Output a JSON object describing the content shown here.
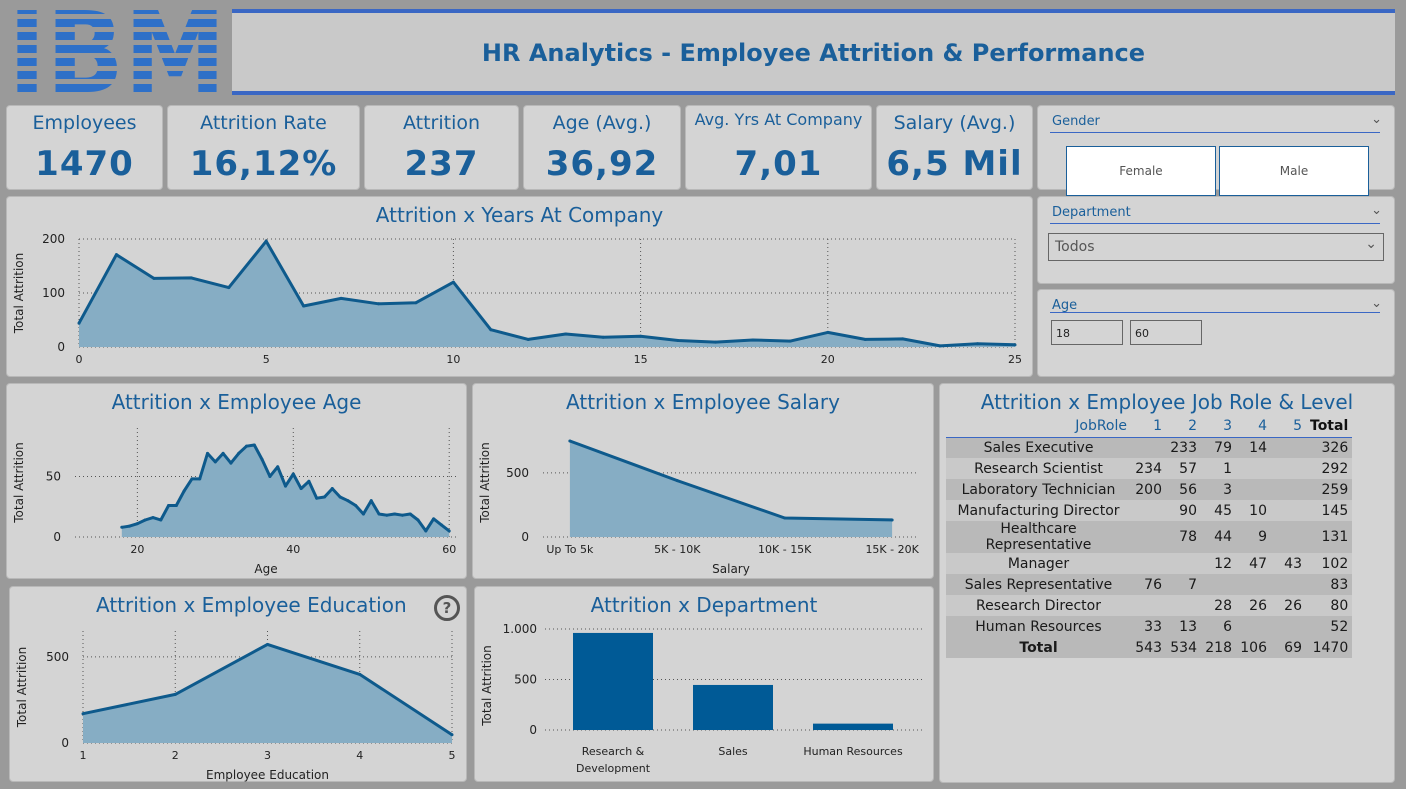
{
  "header": {
    "logo_text": "IBM",
    "title": "HR Analytics - Employee Attrition & Performance"
  },
  "kpis": [
    {
      "label": "Employees",
      "value": "1470"
    },
    {
      "label": "Attrition Rate",
      "value": "16,12%"
    },
    {
      "label": "Attrition",
      "value": "237"
    },
    {
      "label": "Age (Avg.)",
      "value": "36,92"
    },
    {
      "label": "Avg. Yrs At Company",
      "value": "7,01"
    },
    {
      "label": "Salary (Avg.)",
      "value": "6,5 Mil"
    }
  ],
  "slicers": {
    "gender": {
      "title": "Gender",
      "options": [
        "Female",
        "Male"
      ]
    },
    "department": {
      "title": "Department",
      "selected": "Todos"
    },
    "age": {
      "title": "Age",
      "min": "18",
      "max": "60"
    }
  },
  "table": {
    "title": "Attrition x Employee Job Role & Level",
    "headers": [
      "JobRole",
      "1",
      "2",
      "3",
      "4",
      "5",
      "Total"
    ],
    "rows": [
      [
        "Sales Executive",
        "",
        "233",
        "79",
        "14",
        "",
        "326"
      ],
      [
        "Research Scientist",
        "234",
        "57",
        "1",
        "",
        "",
        "292"
      ],
      [
        "Laboratory Technician",
        "200",
        "56",
        "3",
        "",
        "",
        "259"
      ],
      [
        "Manufacturing Director",
        "",
        "90",
        "45",
        "10",
        "",
        "145"
      ],
      [
        "Healthcare Representative",
        "",
        "78",
        "44",
        "9",
        "",
        "131"
      ],
      [
        "Manager",
        "",
        "",
        "12",
        "47",
        "43",
        "102"
      ],
      [
        "Sales Representative",
        "76",
        "7",
        "",
        "",
        "",
        "83"
      ],
      [
        "Research Director",
        "",
        "",
        "28",
        "26",
        "26",
        "80"
      ],
      [
        "Human Resources",
        "33",
        "13",
        "6",
        "",
        "",
        "52"
      ]
    ],
    "total_row": [
      "Total",
      "543",
      "534",
      "218",
      "106",
      "69",
      "1470"
    ]
  },
  "help_icon": "?",
  "chart_data": [
    {
      "type": "area",
      "title": "Attrition x Years At Company",
      "xlabel": "",
      "ylabel": "Total Attrition",
      "xlim": [
        0,
        25
      ],
      "ylim": [
        0,
        200
      ],
      "xticks": [
        0,
        5,
        10,
        15,
        20,
        25
      ],
      "yticks": [
        0,
        100,
        200
      ],
      "x": [
        0,
        1,
        2,
        3,
        4,
        5,
        6,
        7,
        8,
        9,
        10,
        11,
        12,
        13,
        14,
        15,
        16,
        17,
        18,
        19,
        20,
        21,
        22,
        23,
        24,
        25
      ],
      "values": [
        44,
        171,
        127,
        128,
        110,
        196,
        76,
        90,
        80,
        82,
        120,
        32,
        14,
        24,
        18,
        20,
        12,
        9,
        13,
        11,
        27,
        14,
        15,
        2,
        6,
        4
      ]
    },
    {
      "type": "area",
      "title": "Attrition x Employee Age",
      "xlabel": "Age",
      "ylabel": "Total Attrition",
      "xlim": [
        12,
        61
      ],
      "ylim": [
        0,
        90
      ],
      "xticks": [
        20,
        40,
        60
      ],
      "yticks": [
        0,
        50
      ],
      "x": [
        18,
        19,
        20,
        21,
        22,
        23,
        24,
        25,
        26,
        27,
        28,
        29,
        30,
        31,
        32,
        33,
        34,
        35,
        36,
        37,
        38,
        39,
        40,
        41,
        42,
        43,
        44,
        45,
        46,
        47,
        48,
        49,
        50,
        51,
        52,
        53,
        54,
        55,
        56,
        57,
        58,
        59,
        60
      ],
      "values": [
        8,
        9,
        11,
        14,
        16,
        14,
        26,
        26,
        38,
        48,
        48,
        69,
        62,
        69,
        61,
        69,
        75,
        76,
        64,
        50,
        58,
        42,
        52,
        40,
        46,
        32,
        33,
        40,
        33,
        30,
        26,
        19,
        30,
        19,
        18,
        19,
        18,
        19,
        14,
        5,
        15,
        10,
        5
      ]
    },
    {
      "type": "area",
      "title": "Attrition x Employee Salary",
      "xlabel": "Salary",
      "ylabel": "Total Attrition",
      "ylim": [
        0,
        850
      ],
      "yticks": [
        0,
        500
      ],
      "categories": [
        "Up To 5k",
        "5K - 10K",
        "10K - 15K",
        "15K - 20K"
      ],
      "values": [
        749,
        440,
        148,
        133
      ]
    },
    {
      "type": "area",
      "title": "Attrition x Employee Education",
      "xlabel": "Employee Education",
      "ylabel": "Total Attrition",
      "xlim": [
        1,
        5
      ],
      "ylim": [
        0,
        650
      ],
      "xticks": [
        1,
        2,
        3,
        4,
        5
      ],
      "yticks": [
        0,
        500
      ],
      "x": [
        1,
        2,
        3,
        4,
        5
      ],
      "values": [
        170,
        282,
        572,
        398,
        48
      ]
    },
    {
      "type": "bar",
      "title": "Attrition x Department",
      "xlabel": "",
      "ylabel": "Total Attrition",
      "ylim": [
        0,
        1000
      ],
      "yticks": [
        0,
        500,
        1000
      ],
      "ytick_labels": [
        "0",
        "500",
        "1.000"
      ],
      "categories": [
        "Research & Development",
        "Sales",
        "Human Resources"
      ],
      "category_lines": [
        [
          "Research &",
          "Development"
        ],
        [
          "Sales"
        ],
        [
          "Human Resources"
        ]
      ],
      "values": [
        961,
        446,
        63
      ]
    }
  ],
  "colors": {
    "accent": "#1a5f9a",
    "line": "#0e5a8c",
    "area_fill": "#86adc4",
    "bar": "#005a96",
    "logo": "#2e70c8"
  }
}
